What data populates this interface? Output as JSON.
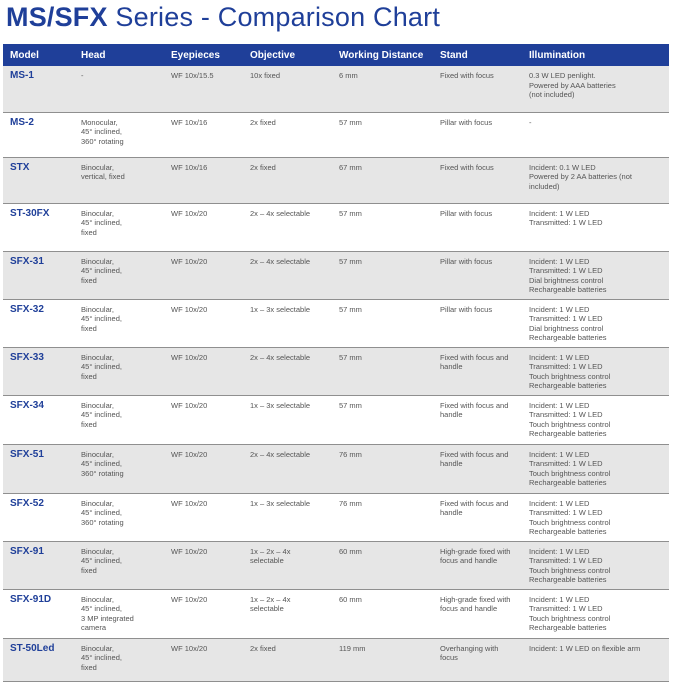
{
  "title": {
    "bold": "MS/SFX",
    "rest": " Series - Comparison Chart"
  },
  "columns": [
    "Model",
    "Head",
    "Eyepieces",
    "Objective",
    "Working Distance",
    "Stand",
    "Illumination"
  ],
  "rows": [
    {
      "model": "MS-1",
      "head": "-",
      "eyepieces": "WF 10x/15.5",
      "objective": "10x fixed",
      "working_distance": "6 mm",
      "stand": "Fixed with focus",
      "illumination": "0.3 W LED penlight.\nPowered by AAA batteries\n(not included)"
    },
    {
      "model": "MS-2",
      "head": "Monocular,\n45° inclined,\n360° rotating",
      "eyepieces": "WF 10x/16",
      "objective": "2x fixed",
      "working_distance": "57 mm",
      "stand": "Pillar with focus",
      "illumination": "-"
    },
    {
      "model": "STX",
      "head": "Binocular,\nvertical, fixed",
      "eyepieces": "WF 10x/16",
      "objective": "2x fixed",
      "working_distance": "67 mm",
      "stand": "Fixed with focus",
      "illumination": "Incident: 0.1 W LED\nPowered by 2 AA batteries (not\nincluded)"
    },
    {
      "model": "ST-30FX",
      "head": "Binocular,\n45° inclined,\nfixed",
      "eyepieces": "WF 10x/20",
      "objective": "2x – 4x selectable",
      "working_distance": "57 mm",
      "stand": "Pillar with focus",
      "illumination": "Incident: 1 W LED\nTransmitted: 1 W LED"
    },
    {
      "model": "SFX-31",
      "head": "Binocular,\n45° inclined,\nfixed",
      "eyepieces": "WF 10x/20",
      "objective": "2x – 4x selectable",
      "working_distance": "57 mm",
      "stand": "Pillar with focus",
      "illumination": "Incident: 1 W LED\nTransmitted: 1 W LED\nDial brightness control\nRechargeable batteries"
    },
    {
      "model": "SFX-32",
      "head": "Binocular,\n45° inclined,\nfixed",
      "eyepieces": "WF 10x/20",
      "objective": "1x – 3x selectable",
      "working_distance": "57 mm",
      "stand": "Pillar with focus",
      "illumination": "Incident: 1 W LED\nTransmitted: 1 W LED\nDial brightness control\nRechargeable batteries"
    },
    {
      "model": "SFX-33",
      "head": "Binocular,\n45° inclined,\nfixed",
      "eyepieces": "WF 10x/20",
      "objective": "2x – 4x selectable",
      "working_distance": "57 mm",
      "stand": "Fixed with focus and\nhandle",
      "illumination": "Incident: 1 W LED\nTransmitted: 1 W LED\nTouch brightness control\nRechargeable batteries"
    },
    {
      "model": "SFX-34",
      "head": "Binocular,\n45° inclined,\nfixed",
      "eyepieces": "WF 10x/20",
      "objective": "1x – 3x selectable",
      "working_distance": "57 mm",
      "stand": "Fixed with focus and\nhandle",
      "illumination": "Incident: 1 W LED\nTransmitted: 1 W LED\nTouch brightness control\nRechargeable batteries"
    },
    {
      "model": "SFX-51",
      "head": "Binocular,\n45° inclined,\n360° rotating",
      "eyepieces": "WF 10x/20",
      "objective": "2x – 4x selectable",
      "working_distance": "76 mm",
      "stand": "Fixed with focus and\nhandle",
      "illumination": "Incident: 1 W LED\nTransmitted: 1 W LED\nTouch brightness control\nRechargeable batteries"
    },
    {
      "model": "SFX-52",
      "head": "Binocular,\n45° inclined,\n360° rotating",
      "eyepieces": "WF 10x/20",
      "objective": "1x – 3x selectable",
      "working_distance": "76 mm",
      "stand": "Fixed with focus and\nhandle",
      "illumination": "Incident: 1 W LED\nTransmitted: 1 W LED\nTouch brightness control\nRechargeable batteries"
    },
    {
      "model": "SFX-91",
      "head": "Binocular,\n45° inclined,\nfixed",
      "eyepieces": "WF 10x/20",
      "objective": "1x – 2x – 4x\nselectable",
      "working_distance": "60 mm",
      "stand": "High-grade fixed with\nfocus and handle",
      "illumination": "Incident: 1 W LED\nTransmitted: 1 W LED\nTouch brightness control\nRechargeable batteries"
    },
    {
      "model": "SFX-91D",
      "head": "Binocular,\n45° inclined,\n3 MP integrated\ncamera",
      "eyepieces": "WF 10x/20",
      "objective": "1x – 2x – 4x\nselectable",
      "working_distance": "60 mm",
      "stand": "High-grade fixed with\nfocus and handle",
      "illumination": "Incident: 1 W LED\nTransmitted: 1 W LED\nTouch brightness control\nRechargeable batteries"
    },
    {
      "model": "ST-50Led",
      "head": "Binocular,\n45° inclined,\nfixed",
      "eyepieces": "WF 10x/20",
      "objective": "2x fixed",
      "working_distance": "119 mm",
      "stand": "Overhanging with\nfocus",
      "illumination": "Incident: 1 W LED on flexible arm"
    }
  ]
}
